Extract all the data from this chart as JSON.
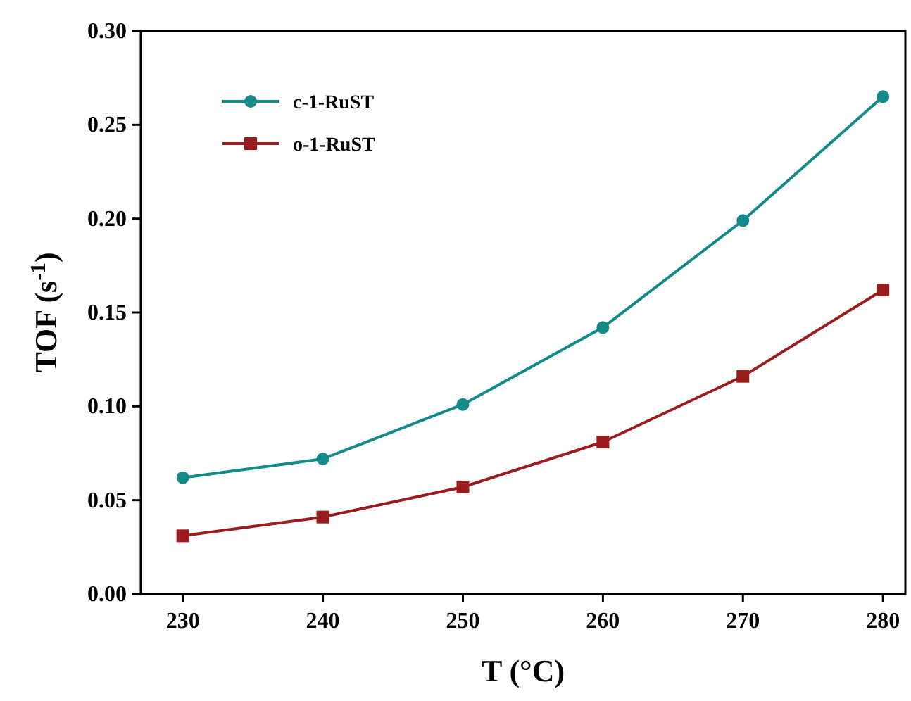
{
  "chart_data": {
    "type": "line",
    "xlabel": "T (°C)",
    "ylabel": "TOF (s$^{-1}$)",
    "x": [
      230,
      240,
      250,
      260,
      270,
      280
    ],
    "series": [
      {
        "name": "c-1-RuST",
        "color": "#138a8a",
        "marker": "circle",
        "values": [
          0.062,
          0.072,
          0.101,
          0.142,
          0.199,
          0.265
        ]
      },
      {
        "name": "o-1-RuST",
        "color": "#9a1c1c",
        "marker": "square",
        "values": [
          0.031,
          0.041,
          0.057,
          0.081,
          0.116,
          0.162
        ]
      }
    ],
    "xlim": [
      227,
      281.6
    ],
    "xticks": [
      230,
      240,
      250,
      260,
      270,
      280
    ],
    "ylim": [
      0,
      0.3
    ],
    "yticks": [
      {
        "value": 0,
        "label": "0.00"
      },
      {
        "value": 0.05,
        "label": "0.05"
      },
      {
        "value": 0.1,
        "label": "0.10"
      },
      {
        "value": 0.15,
        "label": "0.15"
      },
      {
        "value": 0.2,
        "label": "0.20"
      },
      {
        "value": 0.25,
        "label": "0.25"
      },
      {
        "value": 0.3,
        "label": "0.30"
      }
    ],
    "legend": "top left",
    "grid": false,
    "line_style": "solid"
  }
}
